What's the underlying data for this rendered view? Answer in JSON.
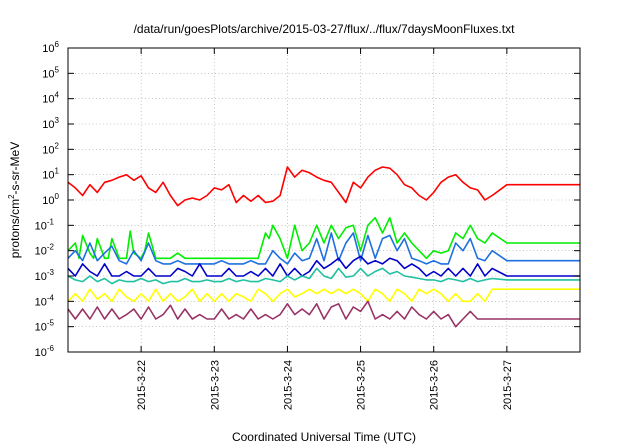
{
  "chart_data": {
    "type": "line",
    "title": "/data/run/goesPlots/archive/2015-03-27/flux/../flux/7daysMoonFluxes.txt",
    "xlabel": "Coordinated Universal Time (UTC)",
    "ylabel": "protons/cm2-s-sr-MeV",
    "ylabel_parts": {
      "pre": "protons/cm",
      "sup": "2",
      "post": "-s-sr-MeV"
    },
    "yscale": "log",
    "ylim": [
      1e-06,
      1000000.0
    ],
    "xlim": [
      0,
      7.0
    ],
    "y_ticks": [
      {
        "value": 1e-06,
        "base": "10",
        "exp": "-6"
      },
      {
        "value": 1e-05,
        "base": "10",
        "exp": "-5"
      },
      {
        "value": 0.0001,
        "base": "10",
        "exp": "-4"
      },
      {
        "value": 0.001,
        "base": "10",
        "exp": "-3"
      },
      {
        "value": 0.01,
        "base": "10",
        "exp": "-2"
      },
      {
        "value": 0.1,
        "base": "10",
        "exp": "-1"
      },
      {
        "value": 1,
        "base": "10",
        "exp": "0"
      },
      {
        "value": 10,
        "base": "10",
        "exp": "1"
      },
      {
        "value": 100,
        "base": "10",
        "exp": "2"
      },
      {
        "value": 1000,
        "base": "10",
        "exp": "3"
      },
      {
        "value": 10000,
        "base": "10",
        "exp": "4"
      },
      {
        "value": 100000,
        "base": "10",
        "exp": "5"
      },
      {
        "value": 1000000,
        "base": "10",
        "exp": "6"
      }
    ],
    "x_ticks": [
      {
        "value": 1.0,
        "label": "2015-3-22"
      },
      {
        "value": 2.0,
        "label": "2015-3-23"
      },
      {
        "value": 3.0,
        "label": "2015-3-24"
      },
      {
        "value": 4.0,
        "label": "2015-3-25"
      },
      {
        "value": 5.0,
        "label": "2015-3-26"
      },
      {
        "value": 6.0,
        "label": "2015-3-27"
      }
    ],
    "grid": true,
    "legend": "none",
    "series": [
      {
        "color": "#ff0000",
        "x": [
          0,
          0.1,
          0.2,
          0.3,
          0.4,
          0.5,
          0.6,
          0.7,
          0.8,
          0.9,
          1.0,
          1.1,
          1.2,
          1.3,
          1.4,
          1.5,
          1.6,
          1.7,
          1.8,
          1.9,
          2.0,
          2.1,
          2.2,
          2.3,
          2.4,
          2.5,
          2.6,
          2.7,
          2.8,
          2.9,
          3.0,
          3.1,
          3.2,
          3.3,
          3.4,
          3.5,
          3.6,
          3.7,
          3.8,
          3.9,
          4.0,
          4.1,
          4.2,
          4.3,
          4.4,
          4.5,
          4.6,
          4.7,
          4.8,
          4.9,
          5.0,
          5.1,
          5.2,
          5.3,
          5.4,
          5.5,
          5.6,
          5.7,
          5.8,
          6.0,
          7.0
        ],
        "y": [
          5,
          3,
          1.5,
          4,
          2,
          5,
          6,
          8,
          10,
          6,
          9,
          3,
          2,
          5,
          1.5,
          0.6,
          1,
          1.2,
          1,
          1.5,
          3,
          2.5,
          4,
          0.8,
          1.5,
          0.9,
          1.5,
          0.8,
          0.9,
          1.5,
          20,
          8,
          15,
          12,
          8,
          6,
          5,
          2,
          0.8,
          5,
          3,
          8,
          15,
          20,
          18,
          10,
          4,
          3,
          1.5,
          1,
          2,
          5,
          8,
          10,
          5,
          3,
          2.5,
          1,
          1.5,
          4,
          4
        ]
      },
      {
        "color": "#00ee00",
        "x": [
          0,
          0.1,
          0.15,
          0.2,
          0.3,
          0.35,
          0.4,
          0.5,
          0.55,
          0.6,
          0.7,
          0.8,
          0.85,
          0.9,
          1.0,
          1.05,
          1.1,
          1.2,
          1.3,
          1.4,
          1.5,
          1.6,
          1.7,
          1.8,
          1.9,
          2.0,
          2.1,
          2.2,
          2.3,
          2.4,
          2.5,
          2.6,
          2.7,
          2.75,
          2.8,
          2.9,
          3.0,
          3.1,
          3.2,
          3.3,
          3.4,
          3.5,
          3.6,
          3.7,
          3.8,
          3.9,
          4.0,
          4.1,
          4.2,
          4.3,
          4.4,
          4.5,
          4.6,
          4.7,
          4.8,
          4.9,
          5.0,
          5.1,
          5.2,
          5.3,
          5.4,
          5.5,
          5.6,
          5.7,
          5.8,
          6.0,
          7.0
        ],
        "y": [
          0.01,
          0.02,
          0.005,
          0.04,
          0.008,
          0.005,
          0.03,
          0.005,
          0.005,
          0.03,
          0.005,
          0.005,
          0.06,
          0.008,
          0.005,
          0.01,
          0.05,
          0.005,
          0.005,
          0.005,
          0.008,
          0.005,
          0.005,
          0.005,
          0.005,
          0.005,
          0.005,
          0.005,
          0.005,
          0.005,
          0.005,
          0.005,
          0.05,
          0.03,
          0.1,
          0.03,
          0.005,
          0.1,
          0.01,
          0.02,
          0.1,
          0.02,
          0.1,
          0.03,
          0.08,
          0.1,
          0.01,
          0.1,
          0.2,
          0.05,
          0.2,
          0.02,
          0.05,
          0.02,
          0.01,
          0.005,
          0.01,
          0.008,
          0.01,
          0.05,
          0.03,
          0.1,
          0.03,
          0.02,
          0.05,
          0.02,
          0.02
        ]
      },
      {
        "color": "#1e70e0",
        "x": [
          0,
          0.1,
          0.2,
          0.3,
          0.4,
          0.5,
          0.6,
          0.7,
          0.8,
          0.9,
          1.0,
          1.1,
          1.2,
          1.3,
          1.4,
          1.5,
          1.6,
          1.7,
          1.8,
          1.9,
          2.0,
          2.1,
          2.2,
          2.3,
          2.4,
          2.5,
          2.6,
          2.7,
          2.8,
          2.9,
          3.0,
          3.1,
          3.2,
          3.3,
          3.4,
          3.5,
          3.6,
          3.7,
          3.8,
          3.9,
          4.0,
          4.1,
          4.2,
          4.3,
          4.4,
          4.5,
          4.6,
          4.7,
          4.8,
          4.9,
          5.0,
          5.1,
          5.2,
          5.3,
          5.4,
          5.5,
          5.6,
          5.7,
          5.8,
          6.0,
          7.0
        ],
        "y": [
          0.005,
          0.01,
          0.004,
          0.02,
          0.004,
          0.008,
          0.015,
          0.004,
          0.003,
          0.01,
          0.004,
          0.02,
          0.004,
          0.003,
          0.003,
          0.004,
          0.003,
          0.003,
          0.003,
          0.003,
          0.003,
          0.004,
          0.003,
          0.003,
          0.003,
          0.004,
          0.003,
          0.003,
          0.01,
          0.005,
          0.003,
          0.008,
          0.004,
          0.005,
          0.03,
          0.004,
          0.05,
          0.004,
          0.02,
          0.05,
          0.004,
          0.04,
          0.005,
          0.03,
          0.04,
          0.01,
          0.03,
          0.005,
          0.004,
          0.003,
          0.004,
          0.003,
          0.003,
          0.02,
          0.01,
          0.03,
          0.005,
          0.004,
          0.01,
          0.004,
          0.004
        ]
      },
      {
        "color": "#0000cc",
        "x": [
          0,
          0.1,
          0.2,
          0.3,
          0.4,
          0.5,
          0.6,
          0.7,
          0.8,
          0.9,
          1.0,
          1.1,
          1.2,
          1.3,
          1.4,
          1.5,
          1.6,
          1.7,
          1.8,
          1.9,
          2.0,
          2.1,
          2.2,
          2.3,
          2.4,
          2.5,
          2.6,
          2.7,
          2.8,
          2.9,
          3.0,
          3.1,
          3.2,
          3.3,
          3.4,
          3.5,
          3.6,
          3.7,
          3.8,
          3.9,
          4.0,
          4.1,
          4.2,
          4.3,
          4.4,
          4.5,
          4.6,
          4.7,
          4.8,
          4.9,
          5.0,
          5.1,
          5.2,
          5.3,
          5.4,
          5.5,
          5.6,
          5.7,
          5.8,
          6.0,
          7.0
        ],
        "y": [
          0.002,
          0.001,
          0.003,
          0.0015,
          0.001,
          0.003,
          0.001,
          0.001,
          0.0015,
          0.001,
          0.001,
          0.002,
          0.001,
          0.001,
          0.001,
          0.002,
          0.0015,
          0.001,
          0.003,
          0.001,
          0.001,
          0.001,
          0.002,
          0.001,
          0.001,
          0.0015,
          0.001,
          0.002,
          0.001,
          0.003,
          0.001,
          0.002,
          0.001,
          0.0015,
          0.004,
          0.002,
          0.003,
          0.005,
          0.002,
          0.004,
          0.006,
          0.003,
          0.004,
          0.003,
          0.005,
          0.004,
          0.002,
          0.003,
          0.002,
          0.001,
          0.0015,
          0.001,
          0.002,
          0.001,
          0.002,
          0.001,
          0.003,
          0.001,
          0.002,
          0.001,
          0.001
        ]
      },
      {
        "color": "#20c0a0",
        "x": [
          0,
          0.1,
          0.2,
          0.3,
          0.4,
          0.5,
          0.6,
          0.7,
          0.8,
          0.9,
          1.0,
          1.1,
          1.2,
          1.3,
          1.4,
          1.5,
          1.6,
          1.7,
          1.8,
          1.9,
          2.0,
          2.1,
          2.2,
          2.3,
          2.4,
          2.5,
          2.6,
          2.7,
          2.8,
          2.9,
          3.0,
          3.1,
          3.2,
          3.3,
          3.4,
          3.5,
          3.6,
          3.7,
          3.8,
          3.9,
          4.0,
          4.1,
          4.2,
          4.3,
          4.4,
          4.5,
          4.6,
          4.7,
          4.8,
          4.9,
          5.0,
          5.1,
          5.2,
          5.3,
          5.4,
          5.5,
          5.6,
          5.7,
          5.8,
          6.0,
          7.0
        ],
        "y": [
          0.001,
          0.0007,
          0.0006,
          0.001,
          0.0006,
          0.0008,
          0.0005,
          0.0007,
          0.0006,
          0.0006,
          0.0008,
          0.0006,
          0.0007,
          0.0005,
          0.0006,
          0.0006,
          0.0008,
          0.0006,
          0.0006,
          0.0007,
          0.0006,
          0.0006,
          0.0008,
          0.0006,
          0.0007,
          0.0006,
          0.0006,
          0.0008,
          0.0007,
          0.0006,
          0.001,
          0.0007,
          0.001,
          0.0008,
          0.002,
          0.001,
          0.0008,
          0.002,
          0.0009,
          0.001,
          0.002,
          0.001,
          0.0015,
          0.002,
          0.0012,
          0.0015,
          0.001,
          0.0009,
          0.0008,
          0.0007,
          0.0007,
          0.0006,
          0.0008,
          0.0007,
          0.0006,
          0.0008,
          0.0006,
          0.0007,
          0.0008,
          0.0007,
          0.0007
        ]
      },
      {
        "color": "#ffff00",
        "x": [
          0,
          0.1,
          0.2,
          0.3,
          0.4,
          0.5,
          0.6,
          0.7,
          0.8,
          0.9,
          1.0,
          1.1,
          1.2,
          1.3,
          1.4,
          1.5,
          1.6,
          1.7,
          1.8,
          1.9,
          2.0,
          2.1,
          2.2,
          2.3,
          2.4,
          2.5,
          2.6,
          2.7,
          2.8,
          2.9,
          3.0,
          3.1,
          3.2,
          3.3,
          3.4,
          3.5,
          3.6,
          3.7,
          3.8,
          3.9,
          4.0,
          4.1,
          4.2,
          4.3,
          4.4,
          4.5,
          4.6,
          4.7,
          4.8,
          4.9,
          5.0,
          5.1,
          5.2,
          5.3,
          5.4,
          5.5,
          5.6,
          5.7,
          5.8,
          6.0,
          7.0
        ],
        "y": [
          0.0001,
          0.0002,
          0.0001,
          0.0003,
          0.00012,
          0.0002,
          0.0001,
          0.0003,
          0.00015,
          0.0001,
          0.0002,
          0.0001,
          0.0003,
          0.0001,
          0.0002,
          0.0001,
          0.00015,
          0.0003,
          0.0001,
          0.0002,
          0.0001,
          0.0002,
          0.0001,
          0.0002,
          0.00015,
          0.0001,
          0.0003,
          0.0002,
          0.0001,
          0.0002,
          0.0003,
          0.00015,
          0.0002,
          0.0003,
          0.0002,
          0.0003,
          0.0002,
          0.0003,
          0.0002,
          0.0003,
          0.0002,
          0.0001,
          0.0003,
          0.0002,
          0.0001,
          0.0003,
          0.0002,
          0.0001,
          0.0003,
          0.0002,
          0.0003,
          0.0002,
          0.0001,
          0.0002,
          0.0001,
          0.0001,
          0.0002,
          0.0001,
          0.0003,
          0.0003,
          0.0003
        ]
      },
      {
        "color": "#993366",
        "x": [
          0,
          0.1,
          0.2,
          0.3,
          0.4,
          0.5,
          0.6,
          0.7,
          0.8,
          0.9,
          1.0,
          1.1,
          1.2,
          1.3,
          1.4,
          1.5,
          1.6,
          1.7,
          1.8,
          1.9,
          2.0,
          2.1,
          2.2,
          2.3,
          2.4,
          2.5,
          2.6,
          2.7,
          2.8,
          2.9,
          3.0,
          3.1,
          3.2,
          3.3,
          3.4,
          3.5,
          3.6,
          3.7,
          3.8,
          3.9,
          4.0,
          4.1,
          4.2,
          4.3,
          4.4,
          4.5,
          4.6,
          4.7,
          4.8,
          4.9,
          5.0,
          5.1,
          5.2,
          5.3,
          5.4,
          5.5,
          5.6,
          5.7,
          5.8,
          6.0,
          7.0
        ],
        "y": [
          5e-05,
          2e-05,
          5e-05,
          2e-05,
          6e-05,
          2e-05,
          5e-05,
          2e-05,
          3e-05,
          5e-05,
          2e-05,
          6e-05,
          2e-05,
          3e-05,
          7e-05,
          2e-05,
          5e-05,
          2e-05,
          3e-05,
          2e-05,
          2e-05,
          5e-05,
          2e-05,
          3e-05,
          2e-05,
          5e-05,
          2e-05,
          3e-05,
          2e-05,
          3e-05,
          8e-05,
          3e-05,
          5e-05,
          3e-05,
          8e-05,
          2e-05,
          6e-05,
          8e-05,
          2e-05,
          6e-05,
          4e-05,
          0.0001,
          2e-05,
          3e-05,
          2e-05,
          4e-05,
          2e-05,
          6e-05,
          3e-05,
          2e-05,
          4e-05,
          2e-05,
          3e-05,
          1e-05,
          2e-05,
          4e-05,
          2e-05,
          2e-05,
          2e-05,
          2e-05,
          2e-05
        ]
      }
    ]
  }
}
